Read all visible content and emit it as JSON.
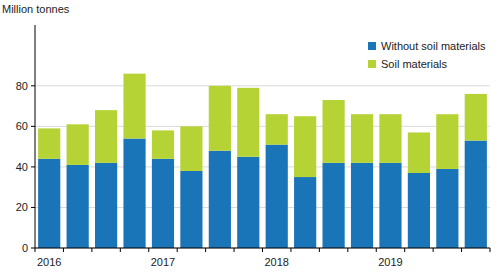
{
  "chart_data": {
    "type": "bar",
    "stacked": true,
    "grid": true,
    "legend": "top-right",
    "y_label": "Million tonnes",
    "categories": [
      "2016",
      null,
      null,
      null,
      "2017",
      null,
      null,
      null,
      "2018",
      null,
      null,
      null,
      "2019",
      null,
      null,
      null
    ],
    "series": [
      {
        "name": "Without soil materials",
        "color": "#1a74b8",
        "values": [
          44,
          41,
          42,
          54,
          44,
          38,
          48,
          45,
          51,
          35,
          42,
          42,
          42,
          37,
          39,
          53
        ]
      },
      {
        "name": "Soil materials",
        "color": "#b5d334",
        "values": [
          15,
          20,
          26,
          32,
          14,
          22,
          32,
          34,
          15,
          30,
          31,
          24,
          24,
          20,
          27,
          23
        ]
      }
    ],
    "ylim": [
      0,
      110
    ],
    "yticks": [
      0,
      20,
      40,
      60,
      80
    ]
  }
}
